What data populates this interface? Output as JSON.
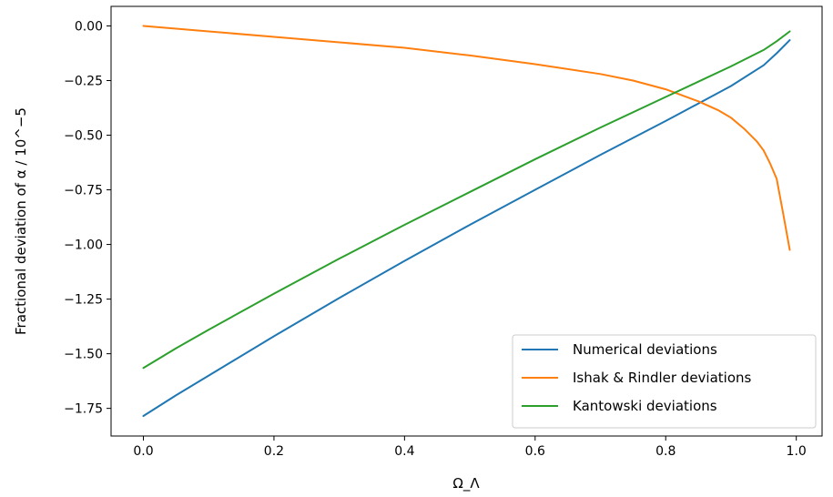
{
  "chart_data": {
    "type": "line",
    "title": "",
    "xlabel": "Ω_Λ",
    "ylabel": "Fractional deviation of α / 10^−5",
    "xlim": [
      -0.0495,
      1.0395
    ],
    "ylim": [
      -1.8765,
      0.0895
    ],
    "xticks": [
      0.0,
      0.2,
      0.4,
      0.6,
      0.8,
      1.0
    ],
    "xtick_labels": [
      "0.0",
      "0.2",
      "0.4",
      "0.6",
      "0.8",
      "1.0"
    ],
    "yticks": [
      0.0,
      -0.25,
      -0.5,
      -0.75,
      -1.0,
      -1.25,
      -1.5,
      -1.75
    ],
    "ytick_labels": [
      "0.00",
      "−0.25",
      "−0.50",
      "−0.75",
      "−1.00",
      "−1.25",
      "−1.50",
      "−1.75"
    ],
    "grid": false,
    "legend_position": "lower-right",
    "series": [
      {
        "name": "Numerical deviations",
        "color": "#1f77b4",
        "x": [
          0.0,
          0.05,
          0.1,
          0.2,
          0.3,
          0.4,
          0.5,
          0.6,
          0.7,
          0.8,
          0.85,
          0.9,
          0.95,
          0.97,
          0.99
        ],
        "y": [
          -1.785,
          -1.69,
          -1.6,
          -1.42,
          -1.245,
          -1.075,
          -0.91,
          -0.75,
          -0.59,
          -0.435,
          -0.355,
          -0.275,
          -0.18,
          -0.125,
          -0.065
        ]
      },
      {
        "name": "Ishak & Rindler deviations",
        "color": "#ff7f0e",
        "x": [
          0.0,
          0.1,
          0.2,
          0.3,
          0.4,
          0.5,
          0.6,
          0.7,
          0.75,
          0.8,
          0.85,
          0.88,
          0.9,
          0.92,
          0.94,
          0.95,
          0.96,
          0.97,
          0.98,
          0.99
        ],
        "y": [
          0.0,
          -0.025,
          -0.05,
          -0.075,
          -0.1,
          -0.135,
          -0.175,
          -0.22,
          -0.25,
          -0.29,
          -0.345,
          -0.385,
          -0.42,
          -0.47,
          -0.53,
          -0.57,
          -0.63,
          -0.7,
          -0.86,
          -1.025
        ]
      },
      {
        "name": "Kantowski deviations",
        "color": "#2ca02c",
        "x": [
          0.0,
          0.05,
          0.1,
          0.2,
          0.3,
          0.4,
          0.5,
          0.6,
          0.7,
          0.8,
          0.85,
          0.9,
          0.95,
          0.97,
          0.99
        ],
        "y": [
          -1.565,
          -1.475,
          -1.39,
          -1.225,
          -1.065,
          -0.91,
          -0.76,
          -0.61,
          -0.465,
          -0.325,
          -0.255,
          -0.185,
          -0.11,
          -0.07,
          -0.025
        ]
      }
    ]
  }
}
